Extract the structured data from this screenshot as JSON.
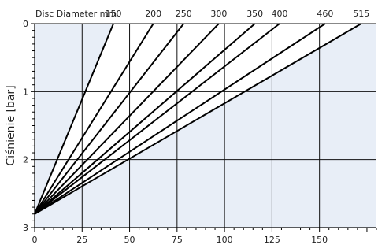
{
  "chart_data": {
    "type": "line",
    "top_axis_label": "Disc Diameter mm",
    "ylabel": "Ciśnienie [bar]",
    "xlabel": "",
    "xlim": [
      0,
      180
    ],
    "ylim": [
      3,
      0
    ],
    "x_ticks": [
      "0",
      "25",
      "50",
      "75",
      "100",
      "125",
      "150"
    ],
    "y_ticks": [
      "0",
      "1",
      "2",
      "3"
    ],
    "plot_background": "#e8eef7",
    "grid": true,
    "series": [
      {
        "name": "150",
        "x": [
          0,
          41.5
        ],
        "y": [
          2.8,
          0
        ]
      },
      {
        "name": "200",
        "x": [
          0,
          62.5
        ],
        "y": [
          2.8,
          0
        ]
      },
      {
        "name": "250",
        "x": [
          0,
          78.5
        ],
        "y": [
          2.8,
          0
        ]
      },
      {
        "name": "300",
        "x": [
          0,
          97
        ],
        "y": [
          2.8,
          0
        ]
      },
      {
        "name": "350",
        "x": [
          0,
          116
        ],
        "y": [
          2.8,
          0
        ]
      },
      {
        "name": "400",
        "x": [
          0,
          129
        ],
        "y": [
          2.8,
          0
        ]
      },
      {
        "name": "460",
        "x": [
          0,
          153
        ],
        "y": [
          2.8,
          0
        ]
      },
      {
        "name": "515",
        "x": [
          0,
          172
        ],
        "y": [
          2.8,
          0
        ]
      }
    ]
  }
}
